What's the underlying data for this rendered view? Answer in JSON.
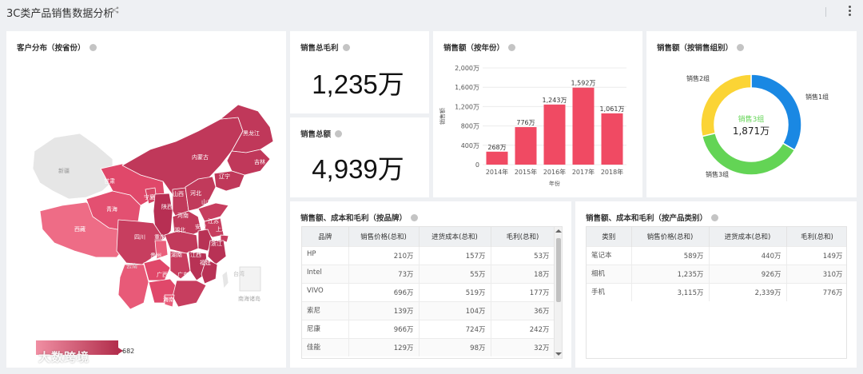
{
  "app": {
    "title": "3C类产品销售数据分析"
  },
  "map_card": {
    "title": "客户分布（按省份）",
    "legend_min": "",
    "legend_max": "682",
    "watermark": "大数跨境",
    "regions": {
      "heilongjiang": "黑龙江",
      "jilin": "吉林",
      "liaoning": "辽宁",
      "neimenggu": "内蒙古",
      "xinjiang": "新疆",
      "gansu": "甘肃",
      "qinghai": "青海",
      "xizang": "西藏",
      "ningxia": "宁夏",
      "shaanxi": "陕西",
      "shanxi": "山西",
      "hebei": "河北",
      "shandong": "山东",
      "henan": "河南",
      "jiangsu": "江苏",
      "anhui": "安徽",
      "hubei": "湖北",
      "sichuan": "四川",
      "chongqing": "重庆",
      "zhejiang": "浙江",
      "shanghai": "上海",
      "guizhou": "贵州",
      "hunan": "湖南",
      "jiangxi": "江西",
      "fujian": "福建",
      "yunnan": "云南",
      "guangxi": "广西",
      "guangdong": "广东",
      "hainan": "海南",
      "taiwan": "台湾",
      "nanhai": "南海诸岛"
    }
  },
  "kpi_profit": {
    "title": "销售总毛利",
    "value": "1,235万"
  },
  "kpi_sales": {
    "title": "销售总额",
    "value": "4,939万"
  },
  "year_chart_card": {
    "title": "销售额（按年份）"
  },
  "group_chart_card": {
    "title": "销售额（按销售组别）"
  },
  "brand_table": {
    "title": "销售额、成本和毛利（按品牌）",
    "columns": [
      "品牌",
      "销售价格(总和)",
      "进货成本(总和)",
      "毛利(总和)"
    ],
    "rows": [
      [
        "HP",
        "210万",
        "157万",
        "53万"
      ],
      [
        "Intel",
        "73万",
        "55万",
        "18万"
      ],
      [
        "VIVO",
        "696万",
        "519万",
        "177万"
      ],
      [
        "索尼",
        "139万",
        "104万",
        "36万"
      ],
      [
        "尼康",
        "966万",
        "724万",
        "242万"
      ],
      [
        "佳能",
        "129万",
        "98万",
        "32万"
      ]
    ]
  },
  "category_table": {
    "title": "销售额、成本和毛利（按产品类别）",
    "columns": [
      "类别",
      "销售价格(总和)",
      "进货成本(总和)",
      "毛利(总和)"
    ],
    "rows": [
      [
        "笔记本",
        "589万",
        "440万",
        "149万"
      ],
      [
        "相机",
        "1,235万",
        "926万",
        "310万"
      ],
      [
        "手机",
        "3,115万",
        "2,339万",
        "776万"
      ]
    ]
  },
  "chart_data": [
    {
      "type": "bar",
      "title": "销售额（按年份）",
      "categories": [
        "2014年",
        "2015年",
        "2016年",
        "2017年",
        "2018年"
      ],
      "values": [
        268,
        776,
        1243,
        1592,
        1061
      ],
      "data_labels": [
        "268万",
        "776万",
        "1,243万",
        "1,592万",
        "1,061万"
      ],
      "ylabel": "销售额",
      "xlabel": "年份",
      "ylim": [
        0,
        2000
      ],
      "yticks": [
        "0",
        "400万",
        "800万",
        "1,200万",
        "1,600万",
        "2,000万"
      ],
      "color": "#f04a63",
      "grid": true
    },
    {
      "type": "pie",
      "title": "销售额（按销售组别）",
      "series": [
        {
          "name": "销售1组",
          "value": 1650,
          "color": "#1a88e3"
        },
        {
          "name": "销售3组",
          "value": 1871,
          "color": "#63d455"
        },
        {
          "name": "销售2组",
          "value": 1418,
          "color": "#fbd435"
        }
      ],
      "center_label": "销售3组",
      "center_value": "1,871万",
      "center_label_color": "#63d455"
    }
  ]
}
